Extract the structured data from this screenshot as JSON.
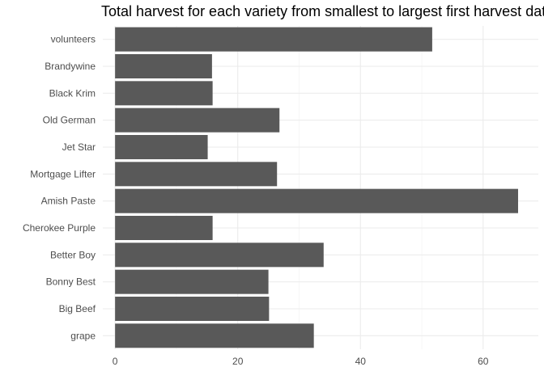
{
  "chart_data": {
    "type": "bar",
    "orientation": "horizontal",
    "title": "Total harvest for each variety from smallest to largest first harvest date",
    "xlabel": "",
    "ylabel": "",
    "categories": [
      "volunteers",
      "Brandywine",
      "Black Krim",
      "Old German",
      "Jet Star",
      "Mortgage Lifter",
      "Amish Paste",
      "Cherokee Purple",
      "Better Boy",
      "Bonny Best",
      "Big Beef",
      "grape"
    ],
    "values": [
      51.7,
      15.8,
      15.9,
      26.8,
      15.1,
      26.4,
      65.7,
      15.9,
      34.0,
      25.0,
      25.1,
      32.4
    ],
    "xlim": [
      -2,
      69
    ],
    "xticks": [
      0,
      20,
      40,
      60
    ],
    "bar_color": "#595959",
    "grid": true,
    "legend": "none"
  }
}
